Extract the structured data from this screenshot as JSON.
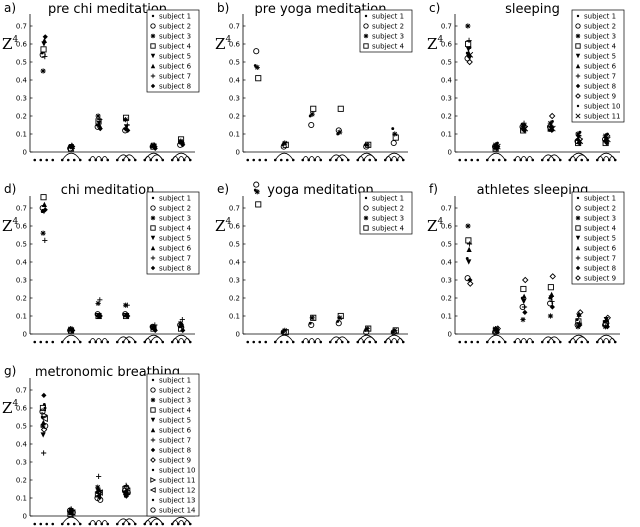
{
  "chart_data": [
    {
      "type": "scatter",
      "panel": "a)",
      "title": "pre chi meditation",
      "ylabel": "Z",
      "ylabel_sup": "4",
      "ylim": [
        0,
        0.8
      ],
      "yticks": [
        "0",
        "0.1",
        "0.2",
        "0.3",
        "0.4",
        "0.5",
        "0.6",
        "0.7"
      ],
      "categories": [
        "pattern 1",
        "pattern 2",
        "pattern 3",
        "pattern 4",
        "pattern 5",
        "pattern 6"
      ],
      "legend": [
        "subject 1",
        "subject 2",
        "subject 3",
        "subject 4",
        "subject 5",
        "subject 6",
        "subject 7",
        "subject 8"
      ],
      "series": [
        {
          "name": "subject 1",
          "marker": "dot",
          "values": [
            0.55,
            0.03,
            0.15,
            0.13,
            0.03,
            0.05
          ]
        },
        {
          "name": "subject 2",
          "marker": "circle",
          "values": [
            0.54,
            0.02,
            0.14,
            0.12,
            0.03,
            0.04
          ]
        },
        {
          "name": "subject 3",
          "marker": "asterisk",
          "values": [
            0.45,
            0.03,
            0.2,
            0.18,
            0.04,
            0.06
          ]
        },
        {
          "name": "subject 4",
          "marker": "square",
          "values": [
            0.57,
            0.02,
            0.17,
            0.19,
            0.03,
            0.07
          ]
        },
        {
          "name": "subject 5",
          "marker": "tri-down",
          "values": [
            0.6,
            0.03,
            0.16,
            0.14,
            0.03,
            0.05
          ]
        },
        {
          "name": "subject 6",
          "marker": "tri-up",
          "values": [
            0.62,
            0.04,
            0.15,
            0.13,
            0.04,
            0.06
          ]
        },
        {
          "name": "subject 7",
          "marker": "plus",
          "values": [
            0.53,
            0.02,
            0.18,
            0.15,
            0.03,
            0.05
          ]
        },
        {
          "name": "subject 8",
          "marker": "diamond",
          "values": [
            0.64,
            0.03,
            0.13,
            0.12,
            0.02,
            0.04
          ]
        }
      ]
    },
    {
      "type": "scatter",
      "panel": "b)",
      "title": "pre yoga meditation",
      "ylabel": "Z",
      "ylabel_sup": "4",
      "ylim": [
        0,
        0.8
      ],
      "yticks": [
        "0",
        "0.1",
        "0.2",
        "0.3",
        "0.4",
        "0.5",
        "0.6",
        "0.7"
      ],
      "categories": [
        "pattern 1",
        "pattern 2",
        "pattern 3",
        "pattern 4",
        "pattern 5",
        "pattern 6"
      ],
      "legend": [
        "subject 1",
        "subject 2",
        "subject 3",
        "subject 4"
      ],
      "series": [
        {
          "name": "subject 1",
          "marker": "dot",
          "values": [
            0.48,
            0.04,
            0.2,
            0.1,
            0.04,
            0.13
          ]
        },
        {
          "name": "subject 2",
          "marker": "circle",
          "values": [
            0.56,
            0.03,
            0.15,
            0.12,
            0.03,
            0.05
          ]
        },
        {
          "name": "subject 3",
          "marker": "asterisk",
          "values": [
            0.47,
            0.05,
            0.21,
            0.11,
            0.04,
            0.1
          ]
        },
        {
          "name": "subject 4",
          "marker": "square",
          "values": [
            0.41,
            0.04,
            0.24,
            0.24,
            0.04,
            0.08
          ]
        }
      ]
    },
    {
      "type": "scatter",
      "panel": "c)",
      "title": "sleeping",
      "ylabel": "Z",
      "ylabel_sup": "4",
      "ylim": [
        0,
        0.8
      ],
      "yticks": [
        "0",
        "0.1",
        "0.2",
        "0.3",
        "0.4",
        "0.5",
        "0.6",
        "0.7"
      ],
      "categories": [
        "pattern 1",
        "pattern 2",
        "pattern 3",
        "pattern 4",
        "pattern 5",
        "pattern 6"
      ],
      "legend": [
        "subject 1",
        "subject 2",
        "subject 3",
        "subject 4",
        "subject 5",
        "subject 6",
        "subject 7",
        "subject 8",
        "subject 9",
        "subject 10",
        "subject 11"
      ],
      "series": [
        {
          "name": "subject 1",
          "marker": "dot",
          "values": [
            0.55,
            0.02,
            0.13,
            0.12,
            0.07,
            0.06
          ]
        },
        {
          "name": "subject 2",
          "marker": "circle",
          "values": [
            0.52,
            0.03,
            0.14,
            0.14,
            0.06,
            0.07
          ]
        },
        {
          "name": "subject 3",
          "marker": "asterisk",
          "values": [
            0.7,
            0.04,
            0.15,
            0.16,
            0.1,
            0.09
          ]
        },
        {
          "name": "subject 4",
          "marker": "square",
          "values": [
            0.6,
            0.02,
            0.12,
            0.13,
            0.05,
            0.05
          ]
        },
        {
          "name": "subject 5",
          "marker": "tri-down",
          "values": [
            0.57,
            0.03,
            0.14,
            0.13,
            0.08,
            0.07
          ]
        },
        {
          "name": "subject 6",
          "marker": "tri-up",
          "values": [
            0.55,
            0.04,
            0.13,
            0.15,
            0.06,
            0.08
          ]
        },
        {
          "name": "subject 7",
          "marker": "plus",
          "values": [
            0.62,
            0.03,
            0.16,
            0.14,
            0.09,
            0.06
          ]
        },
        {
          "name": "subject 8",
          "marker": "diamond",
          "values": [
            0.53,
            0.02,
            0.12,
            0.12,
            0.05,
            0.05
          ]
        },
        {
          "name": "subject 9",
          "marker": "diamond-open",
          "values": [
            0.5,
            0.03,
            0.14,
            0.2,
            0.07,
            0.09
          ]
        },
        {
          "name": "subject 10",
          "marker": "dot",
          "values": [
            0.58,
            0.05,
            0.15,
            0.17,
            0.11,
            0.1
          ]
        },
        {
          "name": "subject 11",
          "marker": "cross",
          "values": [
            0.54,
            0.03,
            0.13,
            0.13,
            0.06,
            0.07
          ]
        }
      ]
    },
    {
      "type": "scatter",
      "panel": "d)",
      "title": "chi meditation",
      "ylabel": "Z",
      "ylabel_sup": "4",
      "ylim": [
        0,
        0.8
      ],
      "yticks": [
        "0",
        "0.1",
        "0.2",
        "0.3",
        "0.4",
        "0.5",
        "0.6",
        "0.7"
      ],
      "categories": [
        "pattern 1",
        "pattern 2",
        "pattern 3",
        "pattern 4",
        "pattern 5",
        "pattern 6"
      ],
      "legend": [
        "subject 1",
        "subject 2",
        "subject 3",
        "subject 4",
        "subject 5",
        "subject 6",
        "subject 7",
        "subject 8"
      ],
      "series": [
        {
          "name": "subject 1",
          "marker": "dot",
          "values": [
            0.68,
            0.02,
            0.1,
            0.1,
            0.03,
            0.04
          ]
        },
        {
          "name": "subject 2",
          "marker": "circle",
          "values": [
            0.7,
            0.02,
            0.11,
            0.11,
            0.04,
            0.05
          ]
        },
        {
          "name": "subject 3",
          "marker": "asterisk",
          "values": [
            0.56,
            0.03,
            0.17,
            0.16,
            0.04,
            0.06
          ]
        },
        {
          "name": "subject 4",
          "marker": "square",
          "values": [
            0.76,
            0.02,
            0.1,
            0.1,
            0.03,
            0.03
          ]
        },
        {
          "name": "subject 5",
          "marker": "tri-down",
          "values": [
            0.68,
            0.02,
            0.1,
            0.1,
            0.03,
            0.04
          ]
        },
        {
          "name": "subject 6",
          "marker": "tri-up",
          "values": [
            0.72,
            0.03,
            0.1,
            0.11,
            0.04,
            0.05
          ]
        },
        {
          "name": "subject 7",
          "marker": "plus",
          "values": [
            0.52,
            0.02,
            0.19,
            0.16,
            0.05,
            0.08
          ]
        },
        {
          "name": "subject 8",
          "marker": "diamond",
          "values": [
            0.69,
            0.02,
            0.1,
            0.1,
            0.02,
            0.02
          ]
        }
      ]
    },
    {
      "type": "scatter",
      "panel": "e)",
      "title": "yoga meditation",
      "ylabel": "Z",
      "ylabel_sup": "4",
      "ylim": [
        0,
        0.8
      ],
      "yticks": [
        "0",
        "0.1",
        "0.2",
        "0.3",
        "0.4",
        "0.5",
        "0.6",
        "0.7"
      ],
      "categories": [
        "pattern 1",
        "pattern 2",
        "pattern 3",
        "pattern 4",
        "pattern 5",
        "pattern 6"
      ],
      "legend": [
        "subject 1",
        "subject 2",
        "subject 3",
        "subject 4"
      ],
      "series": [
        {
          "name": "subject 1",
          "marker": "dot",
          "values": [
            0.8,
            0.01,
            0.06,
            0.07,
            0.02,
            0.01
          ]
        },
        {
          "name": "subject 2",
          "marker": "circle",
          "values": [
            0.83,
            0.01,
            0.05,
            0.06,
            0.01,
            0.01
          ]
        },
        {
          "name": "subject 3",
          "marker": "asterisk",
          "values": [
            0.79,
            0.02,
            0.09,
            0.09,
            0.03,
            0.02
          ]
        },
        {
          "name": "subject 4",
          "marker": "square",
          "values": [
            0.72,
            0.01,
            0.09,
            0.1,
            0.03,
            0.02
          ]
        }
      ]
    },
    {
      "type": "scatter",
      "panel": "f)",
      "title": "athletes sleeping",
      "ylabel": "Z",
      "ylabel_sup": "4",
      "ylim": [
        0,
        0.8
      ],
      "yticks": [
        "0",
        "0.1",
        "0.2",
        "0.3",
        "0.4",
        "0.5",
        "0.6",
        "0.7"
      ],
      "categories": [
        "pattern 1",
        "pattern 2",
        "pattern 3",
        "pattern 4",
        "pattern 5",
        "pattern 6"
      ],
      "legend": [
        "subject 1",
        "subject 2",
        "subject 3",
        "subject 4",
        "subject 5",
        "subject 6",
        "subject 7",
        "subject 8",
        "subject 9"
      ],
      "series": [
        {
          "name": "subject 1",
          "marker": "dot",
          "values": [
            0.42,
            0.02,
            0.2,
            0.2,
            0.08,
            0.07
          ]
        },
        {
          "name": "subject 2",
          "marker": "circle",
          "values": [
            0.31,
            0.01,
            0.15,
            0.17,
            0.05,
            0.05
          ]
        },
        {
          "name": "subject 3",
          "marker": "asterisk",
          "values": [
            0.6,
            0.03,
            0.08,
            0.1,
            0.04,
            0.04
          ]
        },
        {
          "name": "subject 4",
          "marker": "square",
          "values": [
            0.52,
            0.02,
            0.25,
            0.26,
            0.07,
            0.06
          ]
        },
        {
          "name": "subject 5",
          "marker": "tri-down",
          "values": [
            0.4,
            0.02,
            0.18,
            0.2,
            0.1,
            0.08
          ]
        },
        {
          "name": "subject 6",
          "marker": "tri-up",
          "values": [
            0.47,
            0.03,
            0.21,
            0.22,
            0.11,
            0.08
          ]
        },
        {
          "name": "subject 7",
          "marker": "plus",
          "values": [
            0.5,
            0.02,
            0.15,
            0.18,
            0.06,
            0.06
          ]
        },
        {
          "name": "subject 8",
          "marker": "diamond",
          "values": [
            0.3,
            0.01,
            0.12,
            0.15,
            0.05,
            0.04
          ]
        },
        {
          "name": "subject 9",
          "marker": "diamond-open",
          "values": [
            0.28,
            0.03,
            0.3,
            0.32,
            0.12,
            0.09
          ]
        }
      ]
    },
    {
      "type": "scatter",
      "panel": "g)",
      "title": "metronomic breathing",
      "ylabel": "Z",
      "ylabel_sup": "4",
      "ylim": [
        0,
        0.8
      ],
      "yticks": [
        "0",
        "0.1",
        "0.2",
        "0.3",
        "0.4",
        "0.5",
        "0.6",
        "0.7"
      ],
      "categories": [
        "pattern 1",
        "pattern 2",
        "pattern 3",
        "pattern 4",
        "pattern 5",
        "pattern 6"
      ],
      "legend": [
        "subject 1",
        "subject 2",
        "subject 3",
        "subject 4",
        "subject 5",
        "subject 6",
        "subject 7",
        "subject 8",
        "subject 9",
        "subject 10",
        "subject 11",
        "subject 12",
        "subject 13",
        "subject 14"
      ],
      "series": [
        {
          "name": "subject 1",
          "marker": "dot",
          "values": [
            0.55,
            0.02,
            0.13,
            0.12,
            0.1,
            0.09
          ]
        },
        {
          "name": "subject 2",
          "marker": "circle",
          "values": [
            0.58,
            0.03,
            0.1,
            0.14,
            0.08,
            0.08
          ]
        },
        {
          "name": "subject 3",
          "marker": "asterisk",
          "values": [
            0.5,
            0.02,
            0.16,
            0.13,
            0.12,
            0.1
          ]
        },
        {
          "name": "subject 4",
          "marker": "square",
          "values": [
            0.6,
            0.01,
            0.12,
            0.15,
            0.09,
            0.07
          ]
        },
        {
          "name": "subject 5",
          "marker": "tri-down",
          "values": [
            0.45,
            0.03,
            0.14,
            0.12,
            0.11,
            0.08
          ]
        },
        {
          "name": "subject 6",
          "marker": "tri-up",
          "values": [
            0.52,
            0.02,
            0.15,
            0.14,
            0.1,
            0.09
          ]
        },
        {
          "name": "subject 7",
          "marker": "plus",
          "values": [
            0.35,
            0.04,
            0.22,
            0.17,
            0.13,
            0.16
          ]
        },
        {
          "name": "subject 8",
          "marker": "diamond",
          "values": [
            0.67,
            0.02,
            0.11,
            0.11,
            0.07,
            0.06
          ]
        },
        {
          "name": "subject 9",
          "marker": "diamond-open",
          "values": [
            0.48,
            0.03,
            0.13,
            0.16,
            0.12,
            0.1
          ]
        },
        {
          "name": "subject 10",
          "marker": "dot",
          "values": [
            0.62,
            0.02,
            0.12,
            0.13,
            0.09,
            0.08
          ]
        },
        {
          "name": "subject 11",
          "marker": "tri-right",
          "values": [
            0.56,
            0.03,
            0.14,
            0.12,
            0.11,
            0.09
          ]
        },
        {
          "name": "subject 12",
          "marker": "tri-left",
          "values": [
            0.54,
            0.02,
            0.13,
            0.14,
            0.1,
            0.1
          ]
        },
        {
          "name": "subject 13",
          "marker": "dot",
          "values": [
            0.6,
            0.01,
            0.1,
            0.12,
            0.08,
            0.07
          ]
        },
        {
          "name": "subject 14",
          "marker": "circle",
          "values": [
            0.5,
            0.02,
            0.09,
            0.13,
            0.07,
            0.08
          ]
        }
      ]
    }
  ]
}
